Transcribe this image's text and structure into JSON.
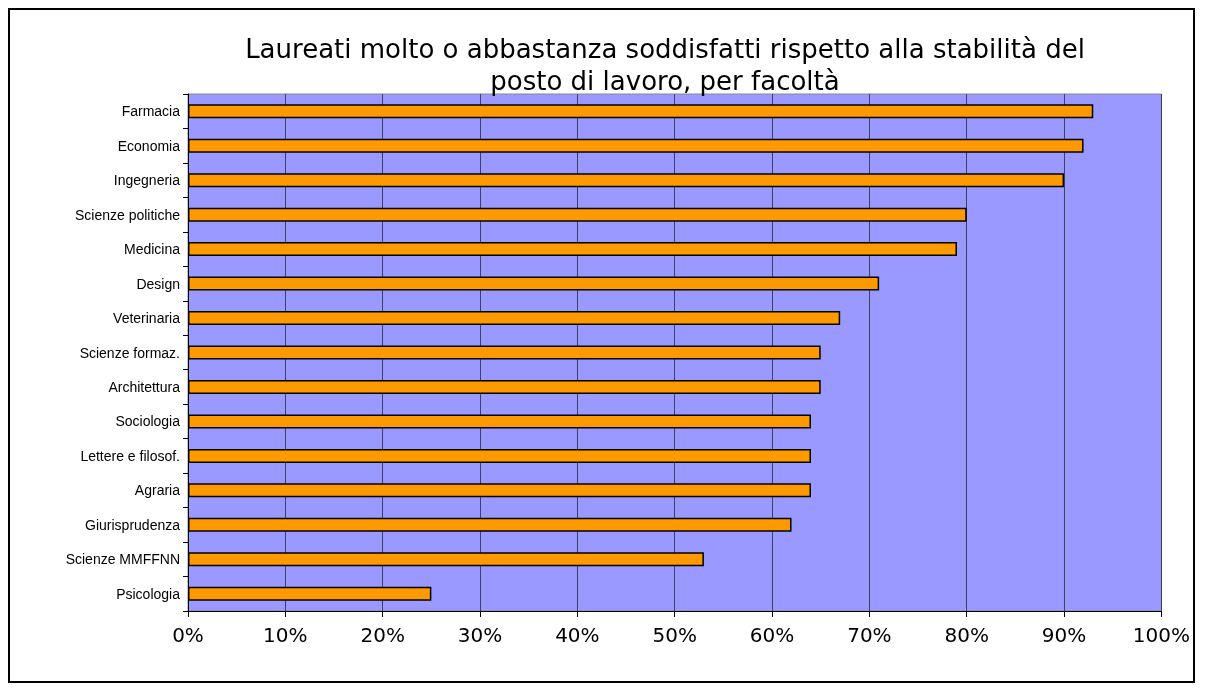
{
  "chart_data": {
    "type": "bar",
    "orientation": "horizontal",
    "title": "Laureati molto o abbastanza soddisfatti rispetto alla stabilità del\nposto di lavoro, per facoltà",
    "categories": [
      "Farmacia",
      "Economia",
      "Ingegneria",
      "Scienze politiche",
      "Medicina",
      "Design",
      "Veterinaria",
      "Scienze formaz.",
      "Architettura",
      "Sociologia",
      "Lettere e filosof.",
      "Agraria",
      "Giurisprudenza",
      "Scienze MMFFNN",
      "Psicologia"
    ],
    "values": [
      93,
      92,
      90,
      80,
      79,
      71,
      67,
      65,
      65,
      64,
      64,
      64,
      62,
      53,
      25
    ],
    "color": "#ff9900",
    "xlim": [
      0,
      100
    ],
    "xticks": [
      {
        "value": 0,
        "label": "0%"
      },
      {
        "value": 10,
        "label": "10%"
      },
      {
        "value": 20,
        "label": "20%"
      },
      {
        "value": 30,
        "label": "30%"
      },
      {
        "value": 40,
        "label": "40%"
      },
      {
        "value": 50,
        "label": "50%"
      },
      {
        "value": 60,
        "label": "60%"
      },
      {
        "value": 70,
        "label": "70%"
      },
      {
        "value": 80,
        "label": "80%"
      },
      {
        "value": 90,
        "label": "90%"
      },
      {
        "value": 100,
        "label": "100%"
      }
    ],
    "grid": "x"
  }
}
